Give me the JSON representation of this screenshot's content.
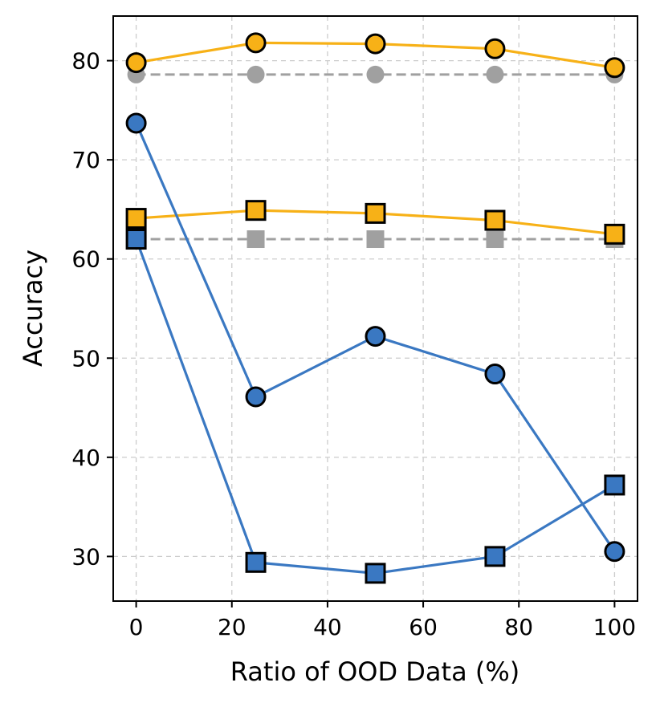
{
  "chart_data": {
    "type": "line",
    "xlabel": "Ratio of OOD Data (%)",
    "ylabel": "Accuracy",
    "xlim": [
      -4.8,
      104.8
    ],
    "ylim": [
      25.5,
      84.5
    ],
    "xticks": [
      0,
      20,
      40,
      60,
      80,
      100
    ],
    "yticks": [
      30,
      40,
      50,
      60,
      70,
      80
    ],
    "xtick_labels": [
      "0",
      "20",
      "40",
      "60",
      "80",
      "100"
    ],
    "ytick_labels": [
      "30",
      "40",
      "50",
      "60",
      "70",
      "80"
    ],
    "grid": true,
    "legend": "none",
    "x": [
      0,
      25,
      50,
      75,
      100
    ],
    "series": [
      {
        "name": "gray-circle-baseline",
        "marker": "circle",
        "color": "#a0a0a0",
        "style": "dashed",
        "values": [
          78.6,
          78.6,
          78.6,
          78.6,
          78.6
        ]
      },
      {
        "name": "gray-square-baseline",
        "marker": "square",
        "color": "#a0a0a0",
        "style": "dashed",
        "values": [
          62.0,
          62.0,
          62.0,
          62.0,
          62.0
        ]
      },
      {
        "name": "orange-circle",
        "marker": "circle",
        "color": "#f7b117",
        "style": "solid",
        "values": [
          79.8,
          81.8,
          81.7,
          81.2,
          79.3
        ]
      },
      {
        "name": "orange-square",
        "marker": "square",
        "color": "#f7b117",
        "style": "solid",
        "values": [
          64.1,
          64.9,
          64.6,
          63.9,
          62.5
        ]
      },
      {
        "name": "blue-circle",
        "marker": "circle",
        "color": "#3a78c2",
        "style": "solid",
        "values": [
          73.7,
          46.1,
          52.2,
          48.4,
          30.5
        ]
      },
      {
        "name": "blue-square",
        "marker": "square",
        "color": "#3a78c2",
        "style": "solid",
        "values": [
          62.0,
          29.4,
          28.3,
          30.0,
          37.2
        ]
      }
    ]
  }
}
